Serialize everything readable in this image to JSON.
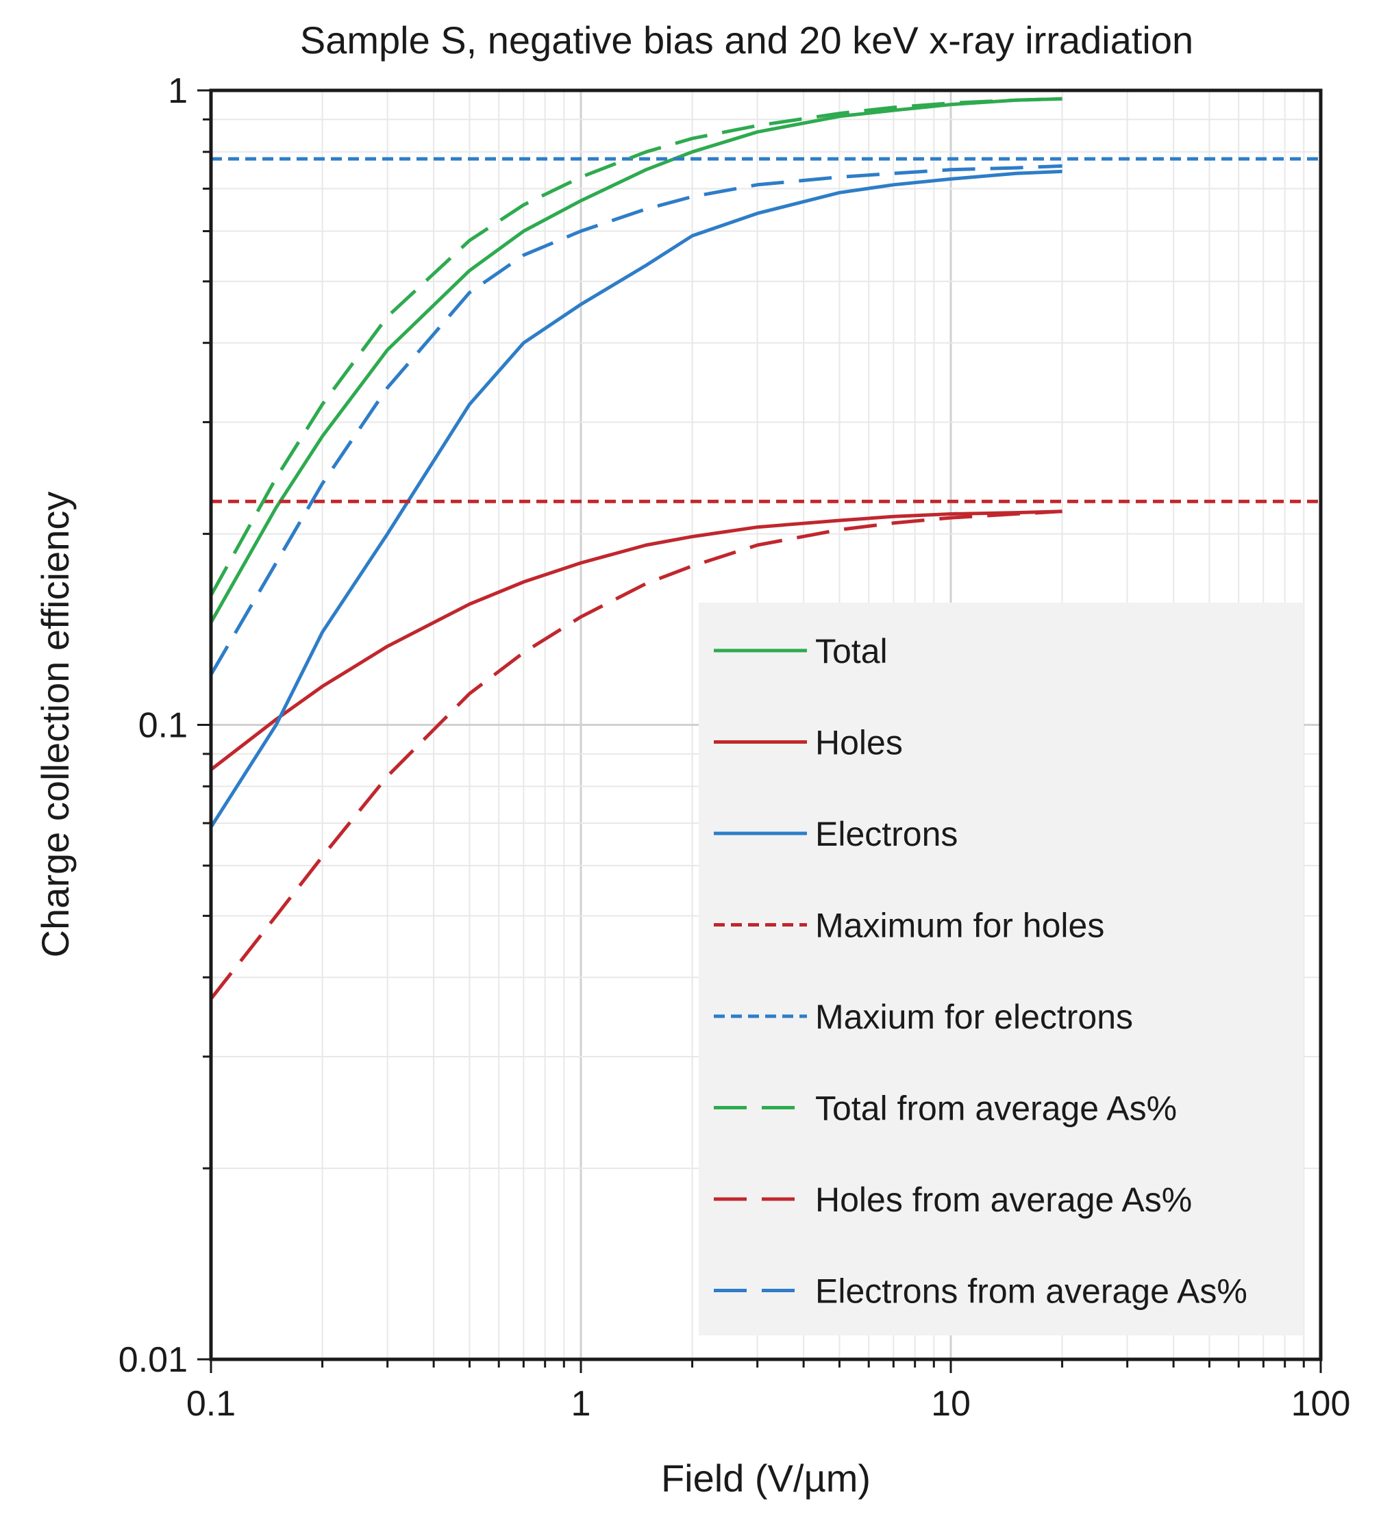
{
  "chart_data": {
    "type": "line",
    "title": "Sample S, negative bias and 20 keV x-ray irradiation",
    "xlabel": "Field (V/µm)",
    "ylabel": "Charge collection efficiency",
    "xscale": "log",
    "yscale": "log",
    "xlim": [
      0.1,
      100
    ],
    "ylim": [
      0.01,
      1
    ],
    "x_ticks": [
      "0.1",
      "1",
      "10",
      "100"
    ],
    "y_ticks": [
      "0.01",
      "0.1",
      "1"
    ],
    "grid": true,
    "legend_position": "bottom-right",
    "series": [
      {
        "name": "Total",
        "color": "#2eaa4f",
        "dash": "solid",
        "x": [
          0.1,
          0.15,
          0.2,
          0.3,
          0.5,
          0.7,
          1,
          1.5,
          2,
          3,
          5,
          7,
          10,
          15,
          20
        ],
        "y": [
          0.145,
          0.22,
          0.285,
          0.39,
          0.52,
          0.6,
          0.67,
          0.75,
          0.8,
          0.86,
          0.91,
          0.93,
          0.95,
          0.965,
          0.97
        ]
      },
      {
        "name": "Holes",
        "color": "#c0272d",
        "dash": "solid",
        "x": [
          0.1,
          0.15,
          0.2,
          0.3,
          0.5,
          0.7,
          1,
          1.5,
          2,
          3,
          5,
          7,
          10,
          15,
          20
        ],
        "y": [
          0.085,
          0.102,
          0.115,
          0.133,
          0.155,
          0.168,
          0.18,
          0.192,
          0.198,
          0.205,
          0.21,
          0.213,
          0.215,
          0.216,
          0.217
        ]
      },
      {
        "name": "Electrons",
        "color": "#2e7dc7",
        "dash": "solid",
        "x": [
          0.1,
          0.15,
          0.2,
          0.3,
          0.5,
          0.7,
          1,
          1.5,
          2,
          3,
          5,
          7,
          10,
          15,
          20
        ],
        "y": [
          0.069,
          0.1,
          0.14,
          0.2,
          0.32,
          0.4,
          0.46,
          0.53,
          0.59,
          0.64,
          0.69,
          0.71,
          0.725,
          0.74,
          0.745
        ]
      },
      {
        "name": "Maximum for holes",
        "color": "#c0272d",
        "dash": "short",
        "x": [
          0.1,
          100
        ],
        "y": [
          0.225,
          0.225
        ]
      },
      {
        "name": "Maxium for electrons",
        "color": "#2e7dc7",
        "dash": "short",
        "x": [
          0.1,
          100
        ],
        "y": [
          0.78,
          0.78
        ]
      },
      {
        "name": "Total from average As%",
        "color": "#2eaa4f",
        "dash": "long",
        "x": [
          0.1,
          0.15,
          0.2,
          0.3,
          0.5,
          0.7,
          1,
          1.5,
          2,
          3,
          5,
          7,
          10,
          15,
          20
        ],
        "y": [
          0.16,
          0.245,
          0.32,
          0.44,
          0.58,
          0.66,
          0.73,
          0.8,
          0.84,
          0.88,
          0.92,
          0.94,
          0.955,
          0.965,
          0.97
        ]
      },
      {
        "name": "Holes from average As%",
        "color": "#c0272d",
        "dash": "long",
        "x": [
          0.1,
          0.15,
          0.2,
          0.3,
          0.5,
          0.7,
          1,
          1.5,
          2,
          3,
          5,
          7,
          10,
          15,
          20
        ],
        "y": [
          0.037,
          0.05,
          0.062,
          0.083,
          0.112,
          0.13,
          0.148,
          0.167,
          0.178,
          0.192,
          0.203,
          0.208,
          0.212,
          0.215,
          0.217
        ]
      },
      {
        "name": "Electrons from average As%",
        "color": "#2e7dc7",
        "dash": "long",
        "x": [
          0.1,
          0.15,
          0.2,
          0.3,
          0.5,
          0.7,
          1,
          1.5,
          2,
          3,
          5,
          7,
          10,
          15,
          20
        ],
        "y": [
          0.12,
          0.18,
          0.24,
          0.34,
          0.48,
          0.55,
          0.6,
          0.65,
          0.68,
          0.71,
          0.73,
          0.74,
          0.75,
          0.755,
          0.76
        ]
      }
    ]
  }
}
